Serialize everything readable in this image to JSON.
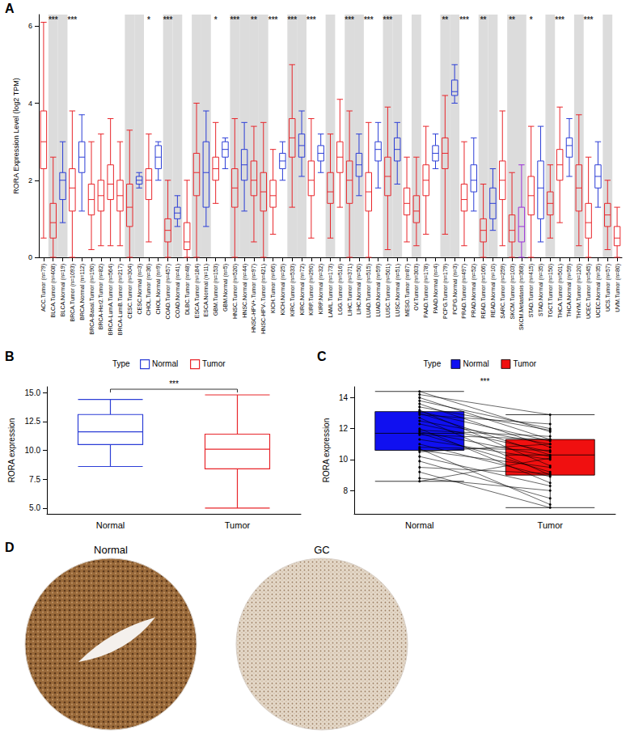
{
  "chart_data": [
    {
      "type": "boxplot",
      "panel": "A",
      "y_label": "RORA Expression Level (log2 TPM)",
      "categories": [
        "ACC.Tumor (n=79)",
        "BLCA.Tumor (n=408)",
        "BLCA.Normal (n=19)",
        "BRCA.Tumor (n=1093)",
        "BRCA.Normal (n=112)",
        "BRCA-Basal.Tumor (n=190)",
        "BRCA-Her2.Tumor (n=82)",
        "BRCA-LumA.Tumor (n=564)",
        "BRCA-LumB.Tumor (n=217)",
        "CESC.Tumor (n=304)",
        "CESC.Normal (n=3)",
        "CHOL.Tumor (n=36)",
        "CHOL.Normal (n=9)",
        "COAD.Tumor (n=457)",
        "COAD.Normal (n=41)",
        "DLBC.Tumor (n=48)",
        "ESCA.Tumor (n=184)",
        "ESCA.Normal (n=11)",
        "GBM.Tumor (n=153)",
        "GBM.Normal (n=5)",
        "HNSC.Tumor (n=520)",
        "HNSC.Normal (n=44)",
        "HNSC-HPV+.Tumor (n=97)",
        "HNSC-HPV-.Tumor (n=421)",
        "KICH.Tumor (n=66)",
        "KICH.Normal (n=25)",
        "KIRC.Tumor (n=533)",
        "KIRC.Normal (n=72)",
        "KIRP.Tumor (n=290)",
        "KIRP.Normal (n=32)",
        "LAML.Tumor (n=173)",
        "LGG.Tumor (n=516)",
        "LIHC.Tumor (n=371)",
        "LIHC.Normal (n=50)",
        "LUAD.Tumor (n=515)",
        "LUAD.Normal (n=59)",
        "LUSC.Tumor (n=501)",
        "LUSC.Normal (n=51)",
        "MESO.Tumor (n=87)",
        "OV.Tumor (n=303)",
        "PAAD.Tumor (n=178)",
        "PAAD.Normal (n=4)",
        "PCPG.Tumor (n=179)",
        "PCPG.Normal (n=3)",
        "PRAD.Tumor (n=497)",
        "PRAD.Normal (n=52)",
        "READ.Tumor (n=166)",
        "READ.Normal (n=10)",
        "SARC.Tumor (n=259)",
        "SKCM.Tumor (n=103)",
        "SKCM.Metastasis (n=368)",
        "STAD.Tumor (n=415)",
        "STAD.Normal (n=35)",
        "TGCT.Tumor (n=150)",
        "THCA.Tumor (n=501)",
        "THCA.Normal (n=59)",
        "THYM.Tumor (n=120)",
        "UCEC.Tumor (n=545)",
        "UCEC.Normal (n=35)",
        "UCS.Tumor (n=57)",
        "UVM.Tumor (n=80)"
      ],
      "boxes": [
        [
          0.5,
          2.3,
          3.0,
          3.8,
          6.1
        ],
        [
          0,
          0.5,
          0.9,
          1.4,
          2.6
        ],
        [
          0.9,
          1.5,
          2.0,
          2.2,
          3.0
        ],
        [
          0,
          1.2,
          1.8,
          2.3,
          3.8
        ],
        [
          1.2,
          2.2,
          2.6,
          3.0,
          3.7
        ],
        [
          0.2,
          1.1,
          1.5,
          1.9,
          3.0
        ],
        [
          0.3,
          1.2,
          1.6,
          2.0,
          3.2
        ],
        [
          0.3,
          1.5,
          1.9,
          2.4,
          3.6
        ],
        [
          0.3,
          1.2,
          1.6,
          2.0,
          3.0
        ],
        [
          0,
          0.8,
          1.3,
          1.9,
          3.3
        ],
        [
          1.8,
          1.9,
          2.0,
          2.1,
          2.2
        ],
        [
          0.4,
          1.5,
          2.0,
          2.3,
          3.2
        ],
        [
          2.0,
          2.3,
          2.6,
          2.9,
          3.0
        ],
        [
          0,
          0.4,
          0.7,
          1.0,
          2.0
        ],
        [
          0.8,
          1.0,
          1.15,
          1.3,
          1.6
        ],
        [
          0,
          0.2,
          0.4,
          0.9,
          2.0
        ],
        [
          0,
          1.6,
          2.2,
          2.7,
          4.0
        ],
        [
          0.8,
          1.3,
          2.2,
          3.0,
          3.8
        ],
        [
          1.4,
          2.0,
          2.3,
          2.6,
          3.5
        ],
        [
          2.3,
          2.6,
          2.8,
          3.0,
          3.1
        ],
        [
          0,
          1.3,
          1.8,
          2.3,
          3.6
        ],
        [
          1.2,
          2.0,
          2.4,
          2.8,
          3.5
        ],
        [
          0.4,
          1.6,
          2.0,
          2.5,
          3.4
        ],
        [
          0,
          1.2,
          1.7,
          2.2,
          3.5
        ],
        [
          0.6,
          1.3,
          1.6,
          2.0,
          2.8
        ],
        [
          2.0,
          2.3,
          2.5,
          2.7,
          3.0
        ],
        [
          1.3,
          2.6,
          3.1,
          3.6,
          5.0
        ],
        [
          2.1,
          2.6,
          2.9,
          3.2,
          3.8
        ],
        [
          0.5,
          1.6,
          2.0,
          2.5,
          3.6
        ],
        [
          2.2,
          2.5,
          2.7,
          2.9,
          3.2
        ],
        [
          0.5,
          1.4,
          1.7,
          2.2,
          3.2
        ],
        [
          1.3,
          2.2,
          2.6,
          3.0,
          4.1
        ],
        [
          0,
          1.4,
          2.0,
          2.5,
          3.8
        ],
        [
          1.6,
          2.1,
          2.4,
          2.7,
          3.2
        ],
        [
          0,
          1.2,
          1.7,
          2.2,
          3.5
        ],
        [
          1.8,
          2.5,
          2.8,
          3.0,
          3.5
        ],
        [
          0.2,
          1.6,
          2.1,
          2.6,
          3.9
        ],
        [
          1.9,
          2.5,
          2.8,
          3.1,
          3.5
        ],
        [
          0.4,
          1.1,
          1.4,
          1.8,
          2.6
        ],
        [
          0.3,
          0.9,
          1.2,
          1.6,
          2.6
        ],
        [
          0.6,
          1.6,
          2.0,
          2.4,
          3.4
        ],
        [
          2.3,
          2.5,
          2.7,
          2.9,
          3.2
        ],
        [
          0.6,
          2.3,
          2.7,
          3.1,
          4.2
        ],
        [
          4.0,
          4.2,
          4.3,
          4.6,
          5.0
        ],
        [
          0.3,
          1.2,
          1.5,
          1.9,
          3.0
        ],
        [
          1.2,
          1.7,
          2.0,
          2.4,
          3.1
        ],
        [
          0,
          0.4,
          0.7,
          1.0,
          1.9
        ],
        [
          0.7,
          1.0,
          1.4,
          1.8,
          2.3
        ],
        [
          0.3,
          1.5,
          2.0,
          2.5,
          3.8
        ],
        [
          0,
          0.4,
          0.7,
          1.1,
          2.2
        ],
        [
          0,
          0.4,
          0.8,
          1.3,
          2.4
        ],
        [
          0,
          1.1,
          1.6,
          2.1,
          3.4
        ],
        [
          0.4,
          1.0,
          1.8,
          2.5,
          3.4
        ],
        [
          0.5,
          1.1,
          1.4,
          1.7,
          2.4
        ],
        [
          0.9,
          2.0,
          2.4,
          2.8,
          3.9
        ],
        [
          2.1,
          2.6,
          2.9,
          3.1,
          3.6
        ],
        [
          0.3,
          1.2,
          1.8,
          2.4,
          3.7
        ],
        [
          0,
          0.5,
          0.9,
          1.4,
          2.6
        ],
        [
          1.3,
          1.8,
          2.1,
          2.4,
          3.0
        ],
        [
          0.2,
          0.8,
          1.1,
          1.4,
          2.0
        ],
        [
          0,
          0.3,
          0.5,
          0.8,
          1.3
        ]
      ],
      "colors": [
        "#e8262b",
        "#e8262b",
        "#2c3ed6",
        "#e8262b",
        "#2c3ed6",
        "#e8262b",
        "#e8262b",
        "#e8262b",
        "#e8262b",
        "#e8262b",
        "#2c3ed6",
        "#e8262b",
        "#2c3ed6",
        "#e8262b",
        "#2c3ed6",
        "#e8262b",
        "#e8262b",
        "#2c3ed6",
        "#e8262b",
        "#2c3ed6",
        "#e8262b",
        "#2c3ed6",
        "#e8262b",
        "#e8262b",
        "#e8262b",
        "#2c3ed6",
        "#e8262b",
        "#2c3ed6",
        "#e8262b",
        "#2c3ed6",
        "#e8262b",
        "#e8262b",
        "#e8262b",
        "#2c3ed6",
        "#e8262b",
        "#2c3ed6",
        "#e8262b",
        "#2c3ed6",
        "#e8262b",
        "#e8262b",
        "#e8262b",
        "#2c3ed6",
        "#e8262b",
        "#2c3ed6",
        "#e8262b",
        "#2c3ed6",
        "#e8262b",
        "#2c3ed6",
        "#e8262b",
        "#e8262b",
        "#9b30d9",
        "#e8262b",
        "#2c3ed6",
        "#e8262b",
        "#e8262b",
        "#2c3ed6",
        "#e8262b",
        "#e8262b",
        "#2c3ed6",
        "#e8262b",
        "#e8262b"
      ],
      "ylim": [
        0,
        6.3
      ],
      "yticks": [
        0,
        2,
        4,
        6
      ],
      "annotations": [
        {
          "category": "BLCA.Tumor (n=408)",
          "text": "***"
        },
        {
          "category": "BRCA.Tumor (n=1093)",
          "text": "***"
        },
        {
          "category": "CHOL.Tumor (n=36)",
          "text": "*"
        },
        {
          "category": "COAD.Tumor (n=457)",
          "text": "***"
        },
        {
          "category": "GBM.Tumor (n=153)",
          "text": "*"
        },
        {
          "category": "HNSC.Tumor (n=520)",
          "text": "***"
        },
        {
          "category": "HNSC-HPV+.Tumor (n=97)",
          "text": "**"
        },
        {
          "category": "KICH.Tumor (n=66)",
          "text": "***"
        },
        {
          "category": "KIRC.Tumor (n=533)",
          "text": "***"
        },
        {
          "category": "KIRP.Tumor (n=290)",
          "text": "***"
        },
        {
          "category": "LIHC.Tumor (n=371)",
          "text": "***"
        },
        {
          "category": "LUAD.Tumor (n=515)",
          "text": "***"
        },
        {
          "category": "LUSC.Tumor (n=501)",
          "text": "***"
        },
        {
          "category": "PCPG.Tumor (n=179)",
          "text": "**"
        },
        {
          "category": "PRAD.Tumor (n=497)",
          "text": "***"
        },
        {
          "category": "READ.Tumor (n=166)",
          "text": "**"
        },
        {
          "category": "SKCM.Tumor (n=103)",
          "text": "**"
        },
        {
          "category": "STAD.Tumor (n=415)",
          "text": "*"
        },
        {
          "category": "THCA.Tumor (n=501)",
          "text": "***"
        },
        {
          "category": "UCEC.Tumor (n=545)",
          "text": "***"
        }
      ]
    },
    {
      "type": "boxplot",
      "panel": "B",
      "legend_title": "Type",
      "legend": "top",
      "y_label": "RORA expression",
      "categories": [
        "Normal",
        "Tumor"
      ],
      "series": [
        {
          "name": "Normal",
          "color": "#2c3ed6",
          "box": [
            8.6,
            10.5,
            11.6,
            13.1,
            14.4
          ]
        },
        {
          "name": "Tumor",
          "color": "#e8262b",
          "box": [
            5.0,
            8.4,
            10.1,
            11.4,
            14.8
          ]
        }
      ],
      "ylim": [
        4.5,
        15.5
      ],
      "yticks": [
        {
          "value": 5,
          "label": "5.0"
        },
        {
          "value": 7.5,
          "label": "7.5"
        },
        {
          "value": 10,
          "label": "10.0"
        },
        {
          "value": 12.5,
          "label": "12.5"
        },
        {
          "value": 15,
          "label": "15.0"
        }
      ],
      "annotation": "***"
    },
    {
      "type": "paired_boxplot",
      "panel": "C",
      "legend_title": "Type",
      "legend": "top",
      "y_label": "RORA expression",
      "categories": [
        "Normal",
        "Tumor"
      ],
      "series": [
        {
          "name": "Normal",
          "color": "#1010f0",
          "box": [
            8.6,
            10.6,
            11.7,
            13.1,
            14.4
          ]
        },
        {
          "name": "Tumor",
          "color": "#f01010",
          "box": [
            6.9,
            9.0,
            10.3,
            11.3,
            12.9
          ]
        }
      ],
      "pairs": [
        [
          14.4,
          11.8
        ],
        [
          14.2,
          12.9
        ],
        [
          14.0,
          11.3
        ],
        [
          13.8,
          12.0
        ],
        [
          13.6,
          10.8
        ],
        [
          13.4,
          11.9
        ],
        [
          13.2,
          9.6
        ],
        [
          13.1,
          11.2
        ],
        [
          13.0,
          10.3
        ],
        [
          12.9,
          12.3
        ],
        [
          12.7,
          9.0
        ],
        [
          12.5,
          11.0
        ],
        [
          12.3,
          10.5
        ],
        [
          12.0,
          8.5
        ],
        [
          11.9,
          11.5
        ],
        [
          11.8,
          10.2
        ],
        [
          11.7,
          9.2
        ],
        [
          11.6,
          11.3
        ],
        [
          11.3,
          10.0
        ],
        [
          11.0,
          8.9
        ],
        [
          10.8,
          10.6
        ],
        [
          10.7,
          7.1
        ],
        [
          10.6,
          9.5
        ],
        [
          10.5,
          11.0
        ],
        [
          10.2,
          8.3
        ],
        [
          9.9,
          7.5
        ],
        [
          9.5,
          9.1
        ],
        [
          9.2,
          6.9
        ],
        [
          8.8,
          8.0
        ],
        [
          8.6,
          10.1
        ]
      ],
      "ylim": [
        6.5,
        14.7
      ],
      "yticks": [
        8,
        10,
        12,
        14
      ],
      "annotation": "***"
    },
    {
      "type": "image_pair",
      "panel": "D",
      "images": [
        {
          "title": "Normal"
        },
        {
          "title": "GC"
        }
      ]
    }
  ]
}
